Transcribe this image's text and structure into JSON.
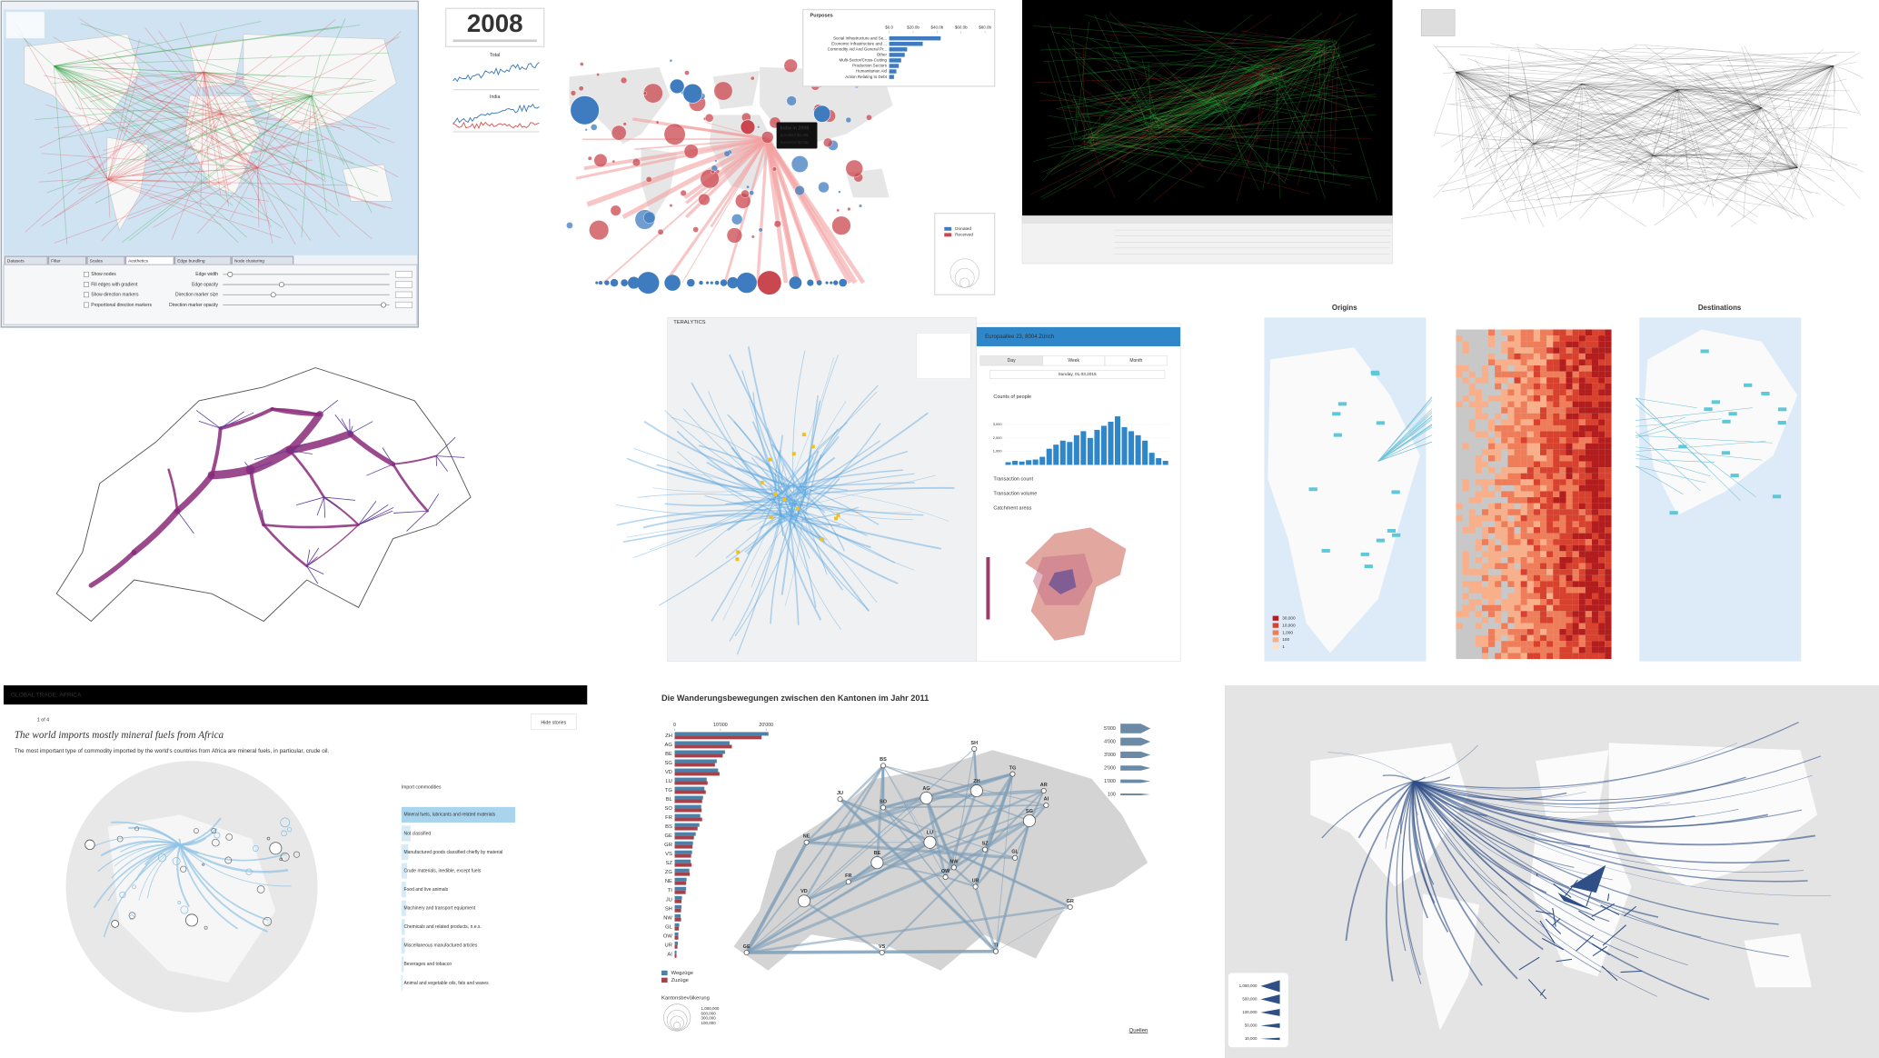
{
  "flowmap_tool": {
    "tabs": [
      "Datasets",
      "Filter",
      "Scales",
      "Aesthetics",
      "Edge bundling",
      "Node clustering"
    ],
    "options": [
      "Show nodes",
      "Fill edges with gradient",
      "Show direction markers",
      "Proportional direction markers"
    ],
    "sliders": [
      "Edge width",
      "Edge opacity",
      "Direction marker size",
      "Direction marker opacity"
    ]
  },
  "aid_explorer": {
    "year": "2008",
    "sparklines": [
      "Total",
      "India"
    ],
    "purposes": {
      "title": "Purposes",
      "categories": [
        "Social Infrastructure and Se...",
        "Economic Infrastructure and ...",
        "Commodity Aid And General Pr...",
        "Other",
        "Multi-Sector/Cross-Cutting",
        "Production Sectors",
        "Humanitarian Aid",
        "Action Relating to Debt"
      ],
      "values": [
        43,
        28,
        15,
        13,
        10,
        8,
        6,
        4
      ],
      "xlim": [
        0,
        80
      ],
      "xticks": [
        {
          "value": 0,
          "label": "$0.0"
        },
        {
          "value": 20,
          "label": "$20.0b"
        },
        {
          "value": 40,
          "label": "$40.0b"
        },
        {
          "value": 60,
          "label": "$60.0b"
        },
        {
          "value": 80,
          "label": "$80.0b"
        }
      ]
    },
    "tooltip": [
      "India in 2008",
      "donated $1.4B",
      "received $0.5B"
    ],
    "legend": [
      "Donated",
      "Received"
    ]
  },
  "teralytics": {
    "brand": "TERALYTICS",
    "header": "Europaallee 23, 8004 Zürich",
    "tabs": [
      "Day",
      "Week",
      "Month"
    ],
    "date": "Sunday, 01.03.2015",
    "sections": [
      "Counts of people",
      "Transaction count",
      "Transaction volume",
      "Catchment areas"
    ],
    "histogram": {
      "values": [
        200,
        300,
        250,
        350,
        400,
        600,
        1200,
        1500,
        1800,
        1700,
        2200,
        2500,
        2000,
        2600,
        2900,
        3200,
        3600,
        2800,
        2500,
        2200,
        1800,
        900,
        500,
        300
      ],
      "ylim": [
        0,
        4000
      ],
      "yticks": [
        {
          "value": 1000,
          "label": "1,000"
        },
        {
          "value": 2000,
          "label": "2,000"
        },
        {
          "value": 3000,
          "label": "3,000"
        }
      ]
    }
  },
  "origins_destinations": {
    "titles": [
      "Origins",
      "Destinations"
    ],
    "legend": [
      "30,000",
      "10,000",
      "1,000",
      "100",
      "1"
    ]
  },
  "global_trade": {
    "header": "GLOBAL TRADE: AFRICA",
    "pager": "1 of 4",
    "button": "Hide stories",
    "headline": "The world imports mostly mineral fuels from Africa",
    "text": "The most important type of commodity imported by the world's countries from Africa are mineral fuels, in particular, crude oil.",
    "list_title": "Import commodities",
    "commodities": [
      "Mineral fuels, lubricants and related materials",
      "Not classified",
      "Manufactured goods classified chiefly by material",
      "Crude materials, inedible, except fuels",
      "Food and live animals",
      "Machinery and transport equipment",
      "Chemicals and related products, n.e.s.",
      "Miscellaneous manufactured articles",
      "Beverages and tobacco",
      "Animal and vegetable oils, fats and waxes"
    ],
    "values": [
      100,
      8,
      6,
      5,
      4,
      4,
      3,
      3,
      2,
      1
    ],
    "xlim": [
      0,
      100
    ]
  },
  "migration": {
    "title": "Die Wanderungsbewegungen zwischen den Kantonen im Jahr 2011",
    "cantons": [
      "ZH",
      "AG",
      "BE",
      "SG",
      "VD",
      "LU",
      "TG",
      "BL",
      "SO",
      "FR",
      "BS",
      "GE",
      "GR",
      "VS",
      "SZ",
      "ZG",
      "NE",
      "TI",
      "JU",
      "SH",
      "NW",
      "GL",
      "OW",
      "UR",
      "AI"
    ],
    "series": [
      {
        "name": "Wegzüge",
        "color": "#4e7fa6",
        "values": [
          20500,
          12000,
          11000,
          9200,
          9500,
          7000,
          6500,
          6200,
          5800,
          5600,
          5400,
          4600,
          4000,
          3800,
          3500,
          3200,
          2600,
          2500,
          1600,
          1500,
          1300,
          1000,
          800,
          700,
          400
        ]
      },
      {
        "name": "Zuzüge",
        "color": "#a2424a",
        "values": [
          19000,
          12500,
          10500,
          8800,
          9800,
          7200,
          6800,
          6000,
          5900,
          6000,
          5000,
          4200,
          3900,
          3600,
          3700,
          3300,
          2500,
          2400,
          1500,
          1400,
          1400,
          900,
          800,
          600,
          400
        ]
      }
    ],
    "xlim": [
      0,
      22000
    ],
    "xticks": [
      0,
      {
        "value": 10000,
        "label": "10'000"
      },
      {
        "value": 20000,
        "label": "20'000"
      }
    ],
    "flow_legend": [
      "5'000",
      "4'000",
      "3'000",
      "2'000",
      "1'000",
      "100"
    ],
    "population_title": "Kantonsbevölkerung",
    "population_legend": [
      "1,000,000",
      "600,000",
      "300,000",
      "100,000"
    ],
    "nodes": [
      "BS",
      "SH",
      "ZH",
      "TG",
      "AR",
      "AG",
      "SO",
      "SG",
      "AI",
      "JU",
      "LU",
      "SZ",
      "GL",
      "NE",
      "BE",
      "NW",
      "OW",
      "UR",
      "FR",
      "VD",
      "GR",
      "GE",
      "VS",
      "TI"
    ],
    "sources": "Quellen"
  },
  "world_flows": {
    "legend": [
      "1,000,000",
      "500,000",
      "100,000",
      "50,000",
      "10,000"
    ]
  }
}
